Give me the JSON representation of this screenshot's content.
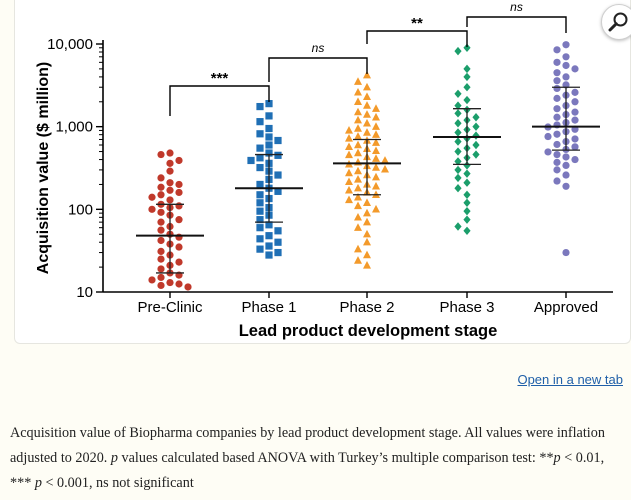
{
  "chart_data": {
    "type": "scatter",
    "title": "",
    "xlabel": "Lead product development stage",
    "ylabel": "Acquisition value  ($ million)",
    "yscale": "log",
    "ylim": [
      10,
      10000
    ],
    "yticks": [
      10,
      100,
      1000,
      10000
    ],
    "ytick_labels": [
      "10",
      "100",
      "1,000",
      "10,000"
    ],
    "categories": [
      "Pre-Clinic",
      "Phase 1",
      "Phase 2",
      "Phase 3",
      "Approved"
    ],
    "series": [
      {
        "name": "Pre-Clinic",
        "marker": "circle",
        "color": "#c0392b",
        "median": 48,
        "q1": 17,
        "q3": 115,
        "values": [
          480,
          460,
          390,
          360,
          290,
          240,
          210,
          200,
          185,
          170,
          160,
          150,
          140,
          130,
          115,
          110,
          105,
          100,
          92,
          85,
          75,
          70,
          62,
          56,
          50,
          46,
          42,
          38,
          35,
          31,
          28,
          25,
          23,
          21,
          19,
          17,
          16,
          15,
          14,
          13,
          12.5,
          12,
          11.5
        ]
      },
      {
        "name": "Phase 1",
        "marker": "square",
        "color": "#1f6fb5",
        "median": 180,
        "q1": 70,
        "q3": 460,
        "values": [
          1900,
          1750,
          1350,
          1150,
          950,
          820,
          750,
          680,
          600,
          550,
          480,
          450,
          420,
          390,
          360,
          320,
          290,
          260,
          230,
          200,
          180,
          165,
          150,
          135,
          120,
          105,
          95,
          85,
          75,
          65,
          60,
          55,
          48,
          44,
          40,
          36,
          33,
          30,
          28
        ]
      },
      {
        "name": "Phase 2",
        "marker": "triangle",
        "color": "#f39a2b",
        "median": 360,
        "q1": 150,
        "q3": 700,
        "values": [
          4200,
          3500,
          3000,
          2600,
          2300,
          2000,
          1800,
          1650,
          1500,
          1400,
          1300,
          1200,
          1100,
          1000,
          950,
          900,
          850,
          800,
          760,
          720,
          680,
          640,
          600,
          570,
          540,
          510,
          480,
          455,
          430,
          410,
          390,
          370,
          350,
          335,
          320,
          305,
          290,
          275,
          260,
          245,
          230,
          215,
          200,
          190,
          180,
          170,
          160,
          150,
          140,
          130,
          120,
          110,
          100,
          90,
          80,
          70,
          60,
          50,
          40,
          33,
          28,
          24,
          21
        ]
      },
      {
        "name": "Phase 3",
        "marker": "diamond",
        "color": "#1b9e6b",
        "median": 750,
        "q1": 350,
        "q3": 1650,
        "values": [
          9000,
          8200,
          5000,
          4000,
          3000,
          2500,
          2100,
          1800,
          1600,
          1450,
          1300,
          1200,
          1100,
          1000,
          920,
          850,
          780,
          720,
          660,
          600,
          550,
          500,
          460,
          420,
          380,
          340,
          300,
          270,
          240,
          210,
          180,
          150,
          120,
          95,
          75,
          62,
          55
        ]
      },
      {
        "name": "Approved",
        "marker": "circle",
        "color": "#7b78bd",
        "median": 1000,
        "q1": 520,
        "q3": 3000,
        "values": [
          9800,
          8500,
          7000,
          6000,
          5500,
          5000,
          4500,
          4000,
          3600,
          3200,
          2900,
          2600,
          2400,
          2200,
          2000,
          1800,
          1650,
          1500,
          1400,
          1300,
          1200,
          1120,
          1050,
          990,
          930,
          870,
          810,
          760,
          710,
          660,
          610,
          570,
          530,
          495,
          460,
          430,
          400,
          370,
          340,
          300,
          260,
          220,
          190,
          30
        ]
      }
    ],
    "comparisons": [
      {
        "from": "Pre-Clinic",
        "to": "Phase 1",
        "label": "***"
      },
      {
        "from": "Phase 1",
        "to": "Phase 2",
        "label": "ns"
      },
      {
        "from": "Phase 2",
        "to": "Phase 3",
        "label": "**"
      },
      {
        "from": "Phase 3",
        "to": "Approved",
        "label": "ns"
      }
    ]
  },
  "zoom": {
    "icon": "magnifier-icon"
  },
  "link": {
    "open_new_tab": "Open in a new tab"
  },
  "caption": {
    "part1": "Acquisition value of Biopharma companies by lead product development stage. All values were inflation adjusted to 2020. ",
    "p1": "p",
    "part2": " values calculated based ANOVA with Turkey’s multiple comparison test: **",
    "p2": "p",
    "part3": " < 0.01, *** ",
    "p3": "p",
    "part4": " < 0.001, ns not significant"
  }
}
